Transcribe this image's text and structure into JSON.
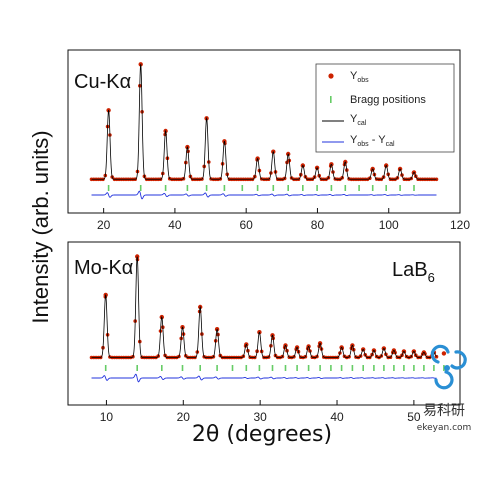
{
  "chart_data": [
    {
      "type": "scatter",
      "panel_label": "Cu-Kα",
      "xlim": [
        10,
        120
      ],
      "xticks": [
        "20",
        "40",
        "60",
        "80",
        "100",
        "120"
      ],
      "xtick_values": [
        20,
        40,
        60,
        80,
        100,
        120
      ],
      "grid": false,
      "legend": {
        "placement": "top-right",
        "entries": [
          {
            "label": "Y",
            "sub": "obs",
            "marker": "dot",
            "color": "#cc2200"
          },
          {
            "label": "Bragg positions",
            "sub": "",
            "marker": "tick",
            "color": "#66cc66"
          },
          {
            "label": "Y",
            "sub": "cal",
            "marker": "line",
            "color": "#000000"
          },
          {
            "label": "Y",
            "sub": "obs",
            "label2": " - Y",
            "sub2": "cal",
            "marker": "line",
            "color": "#2233dd"
          }
        ]
      },
      "series": [
        {
          "name": "Yobs",
          "color": "#cc2200",
          "peaks": [
            {
              "x": 21.4,
              "y": 0.6
            },
            {
              "x": 30.4,
              "y": 1.0
            },
            {
              "x": 37.4,
              "y": 0.42
            },
            {
              "x": 43.5,
              "y": 0.28
            },
            {
              "x": 48.9,
              "y": 0.53
            },
            {
              "x": 53.9,
              "y": 0.33
            },
            {
              "x": 63.2,
              "y": 0.18
            },
            {
              "x": 67.6,
              "y": 0.24
            },
            {
              "x": 71.8,
              "y": 0.22
            },
            {
              "x": 75.9,
              "y": 0.12
            },
            {
              "x": 79.9,
              "y": 0.1
            },
            {
              "x": 83.9,
              "y": 0.13
            },
            {
              "x": 87.8,
              "y": 0.15
            },
            {
              "x": 95.5,
              "y": 0.09
            },
            {
              "x": 99.3,
              "y": 0.12
            },
            {
              "x": 103.2,
              "y": 0.09
            },
            {
              "x": 107.1,
              "y": 0.06
            }
          ]
        },
        {
          "name": "Ycal",
          "color": "#000000"
        },
        {
          "name": "Bragg positions",
          "color": "#66cc66",
          "positions": [
            21.4,
            30.4,
            37.4,
            43.5,
            48.9,
            53.9,
            58.9,
            63.2,
            67.6,
            71.8,
            75.9,
            79.9,
            83.9,
            87.8,
            91.7,
            95.5,
            99.3,
            103.2,
            107.1
          ]
        },
        {
          "name": "Yobs - Ycal",
          "color": "#2233dd"
        }
      ]
    },
    {
      "type": "scatter",
      "panel_label": "Mo-Kα",
      "sample_label": "LaB",
      "sample_sub": "6",
      "xlim": [
        5,
        56
      ],
      "xticks": [
        "10",
        "20",
        "30",
        "40",
        "50",
        "60"
      ],
      "xtick_values": [
        10,
        20,
        30,
        40,
        50,
        60
      ],
      "grid": false,
      "series": [
        {
          "name": "Yobs",
          "color": "#cc2200",
          "peaks": [
            {
              "x": 9.9,
              "y": 0.62
            },
            {
              "x": 14.0,
              "y": 1.0
            },
            {
              "x": 17.2,
              "y": 0.4
            },
            {
              "x": 19.9,
              "y": 0.3
            },
            {
              "x": 22.2,
              "y": 0.5
            },
            {
              "x": 24.4,
              "y": 0.28
            },
            {
              "x": 28.2,
              "y": 0.13
            },
            {
              "x": 29.9,
              "y": 0.25
            },
            {
              "x": 31.6,
              "y": 0.22
            },
            {
              "x": 33.3,
              "y": 0.12
            },
            {
              "x": 34.8,
              "y": 0.1
            },
            {
              "x": 36.3,
              "y": 0.11
            },
            {
              "x": 37.8,
              "y": 0.14
            },
            {
              "x": 40.6,
              "y": 0.1
            },
            {
              "x": 42.0,
              "y": 0.12
            },
            {
              "x": 43.4,
              "y": 0.08
            },
            {
              "x": 44.8,
              "y": 0.07
            },
            {
              "x": 46.1,
              "y": 0.09
            },
            {
              "x": 47.4,
              "y": 0.07
            },
            {
              "x": 48.7,
              "y": 0.06
            },
            {
              "x": 50.0,
              "y": 0.06
            },
            {
              "x": 51.3,
              "y": 0.05
            },
            {
              "x": 52.6,
              "y": 0.05
            },
            {
              "x": 53.9,
              "y": 0.04
            }
          ]
        },
        {
          "name": "Ycal",
          "color": "#000000"
        },
        {
          "name": "Bragg positions",
          "color": "#66cc66",
          "positions": [
            9.9,
            14.0,
            17.2,
            19.9,
            22.2,
            24.4,
            26.4,
            28.2,
            29.9,
            31.6,
            33.3,
            34.8,
            36.3,
            37.8,
            39.2,
            40.6,
            42.0,
            43.4,
            44.8,
            46.1,
            47.4,
            48.7,
            50.0,
            51.3,
            52.6,
            53.9
          ]
        },
        {
          "name": "Yobs - Ycal",
          "color": "#2233dd"
        }
      ]
    }
  ],
  "axes": {
    "ylabel": "Intensity (arb. units)",
    "xlabel": "2θ (degrees)"
  },
  "watermark": {
    "name": "易科研",
    "url": "ekeyan.com",
    "color": "#2a8fd4"
  }
}
